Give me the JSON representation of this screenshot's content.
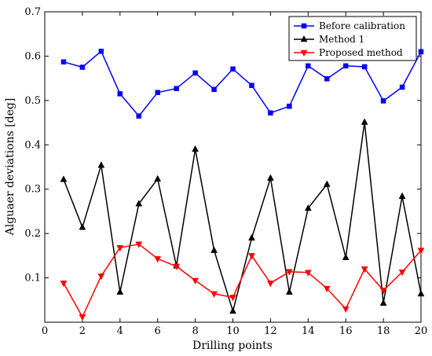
{
  "chart_data": {
    "type": "line",
    "title": "",
    "xlabel": "Drilling points",
    "ylabel": "Alguaer deviations [deg]",
    "xlim": [
      0,
      20
    ],
    "ylim": [
      0,
      0.7
    ],
    "xticks": [
      "0",
      "2",
      "4",
      "6",
      "8",
      "10",
      "12",
      "14",
      "16",
      "18",
      "20"
    ],
    "yticks": [
      "0.1",
      "0.2",
      "0.3",
      "0.4",
      "0.5",
      "0.6",
      "0.7"
    ],
    "grid": false,
    "legend_position": "top-right",
    "x": [
      1,
      2,
      3,
      4,
      5,
      6,
      7,
      8,
      9,
      10,
      11,
      12,
      13,
      14,
      15,
      16,
      17,
      18,
      19,
      20
    ],
    "series": [
      {
        "name": "Before calibration",
        "color": "#0000ff",
        "marker": "square",
        "values": [
          0.587,
          0.575,
          0.611,
          0.515,
          0.465,
          0.518,
          0.527,
          0.562,
          0.525,
          0.571,
          0.534,
          0.472,
          0.487,
          0.578,
          0.549,
          0.578,
          0.576,
          0.499,
          0.53,
          0.61
        ]
      },
      {
        "name": "Method 1",
        "color": "#000000",
        "marker": "triangle-up",
        "values": [
          0.322,
          0.214,
          0.354,
          0.068,
          0.267,
          0.323,
          0.127,
          0.39,
          0.162,
          0.025,
          0.19,
          0.325,
          0.068,
          0.257,
          0.311,
          0.146,
          0.451,
          0.043,
          0.284,
          0.064
        ]
      },
      {
        "name": "Proposed method",
        "color": "#ff0000",
        "marker": "triangle-down",
        "values": [
          0.088,
          0.012,
          0.104,
          0.168,
          0.176,
          0.143,
          0.126,
          0.094,
          0.064,
          0.056,
          0.15,
          0.088,
          0.114,
          0.112,
          0.076,
          0.03,
          0.12,
          0.072,
          0.113,
          0.162
        ]
      }
    ]
  }
}
